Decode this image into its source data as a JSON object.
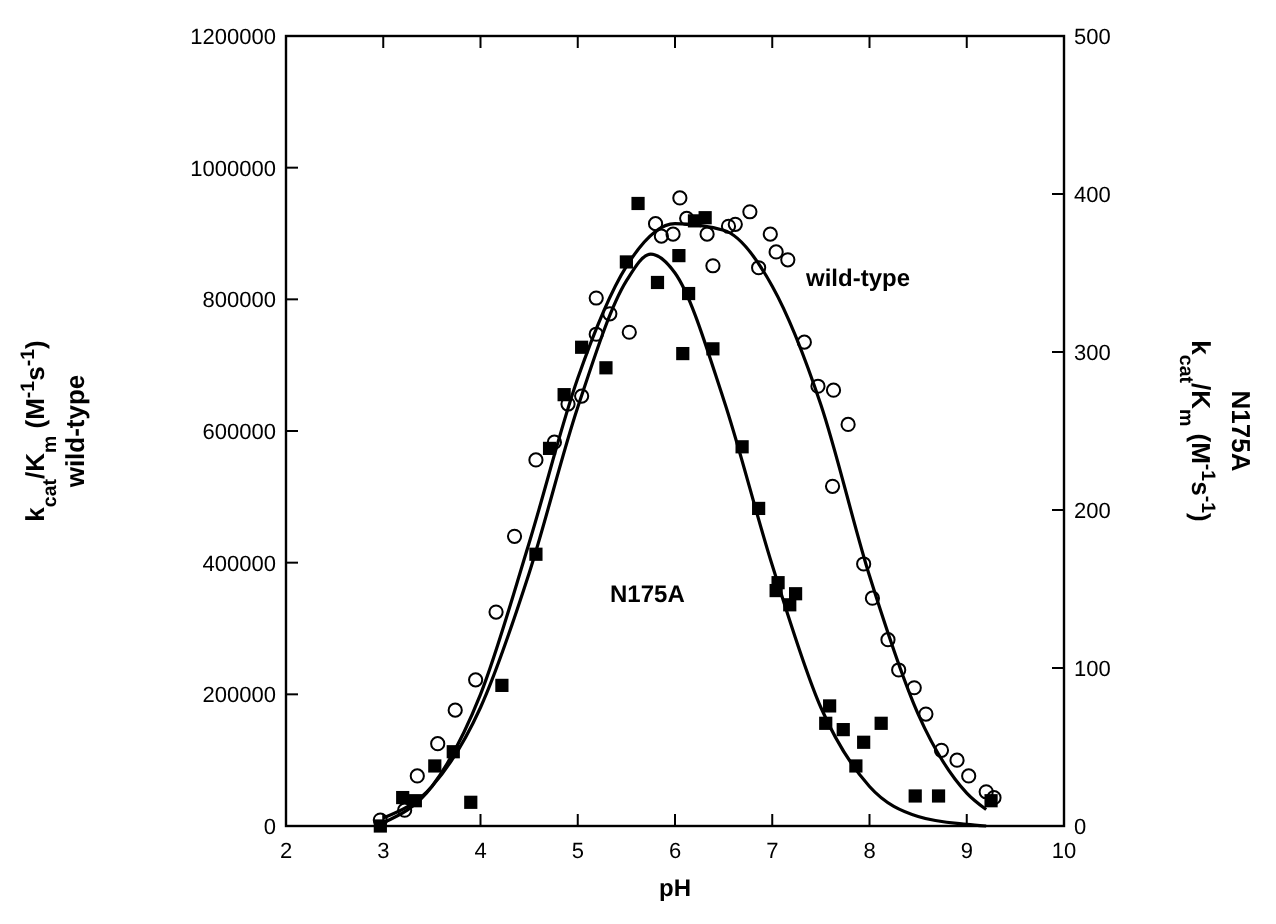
{
  "chart_data": {
    "type": "scatter",
    "xlabel": "pH",
    "ylabel": "k$_{cat}$/K$_{m}$ (M$^{-1}$s$^{-1}$)\nwild-type",
    "y2label": "k$_{cat}$/K$_{m}$ (M$^{-1}$s$^{-1}$)\nN175A",
    "xlim": [
      2,
      10
    ],
    "xticks": [
      2,
      3,
      4,
      5,
      6,
      7,
      8,
      9,
      10
    ],
    "ylim": [
      0,
      1200000
    ],
    "yticks": [
      0,
      200000,
      400000,
      600000,
      800000,
      1000000,
      1200000
    ],
    "y2lim": [
      0,
      500
    ],
    "y2ticks": [
      0,
      100,
      200,
      300,
      400,
      500
    ],
    "grid": false,
    "series": [
      {
        "marker": "circle",
        "color": "#000000",
        "x": [
          2.97,
          3.22,
          3.35,
          3.56,
          3.74,
          3.95,
          4.16,
          4.35,
          4.57,
          4.76,
          4.9,
          5.04,
          5.19,
          5.19,
          5.33,
          5.53,
          5.8,
          5.86,
          5.98,
          6.05,
          6.12,
          6.33,
          6.39,
          6.55,
          6.62,
          6.77,
          6.86,
          6.98,
          7.04,
          7.16,
          7.33,
          7.47,
          7.63,
          7.62,
          7.78,
          7.94,
          8.03,
          8.19,
          8.3,
          8.46,
          8.58,
          8.74,
          8.9,
          9.02,
          9.2,
          9.28
        ],
        "values": [
          9000,
          24000,
          76000,
          125000,
          176000,
          222000,
          325000,
          440000,
          556000,
          583000,
          641000,
          653000,
          747000,
          802000,
          778000,
          750000,
          915000,
          896000,
          899000,
          954000,
          923000,
          899000,
          851000,
          911000,
          914000,
          933000,
          848000,
          899000,
          872000,
          860000,
          735000,
          668000,
          662000,
          516000,
          610000,
          398000,
          346000,
          283000,
          237000,
          210000,
          170000,
          115000,
          100000,
          76000,
          52000,
          43000
        ]
      },
      {
        "marker": "square",
        "axis": "y2",
        "color": "#000000",
        "x": [
          2.97,
          3.2,
          3.33,
          3.53,
          3.72,
          3.9,
          4.22,
          4.57,
          4.71,
          4.86,
          5.04,
          5.29,
          5.5,
          5.62,
          5.82,
          6.04,
          6.08,
          6.14,
          6.2,
          6.31,
          6.39,
          6.69,
          6.86,
          7.04,
          7.06,
          7.18,
          7.24,
          7.55,
          7.59,
          7.73,
          7.86,
          7.94,
          8.12,
          8.47,
          8.71,
          9.25
        ],
        "values": [
          0,
          18,
          16,
          38,
          47,
          15,
          89,
          172,
          239,
          273,
          303,
          290,
          357,
          394,
          344,
          361,
          299,
          337,
          383,
          385,
          302,
          240,
          201,
          149,
          154,
          140,
          147,
          65,
          76,
          61,
          38,
          53,
          65,
          19,
          19,
          16
        ]
      },
      {
        "type": "line",
        "marker": "none",
        "color": "#000000",
        "x": [
          3,
          3.5,
          4,
          4.5,
          5,
          5.5,
          6,
          6.5,
          7,
          7.5,
          8,
          8.5,
          9,
          9.2
        ],
        "values": [
          5000,
          60000,
          200000,
          430000,
          680000,
          850000,
          915000,
          905000,
          820000,
          640000,
          380000,
          170000,
          50000,
          25000
        ]
      },
      {
        "type": "line",
        "marker": "none",
        "axis": "y2",
        "color": "#000000",
        "x": [
          3,
          3.5,
          4,
          4.5,
          5,
          5.5,
          5.75,
          6,
          6.5,
          7,
          7.5,
          8,
          8.5,
          9,
          9.2
        ],
        "values": [
          5,
          25,
          75,
          160,
          265,
          345,
          362,
          350,
          270,
          165,
          75,
          25,
          6,
          1,
          0
        ]
      }
    ],
    "annotations": [
      "wild-type",
      "N175A"
    ]
  }
}
